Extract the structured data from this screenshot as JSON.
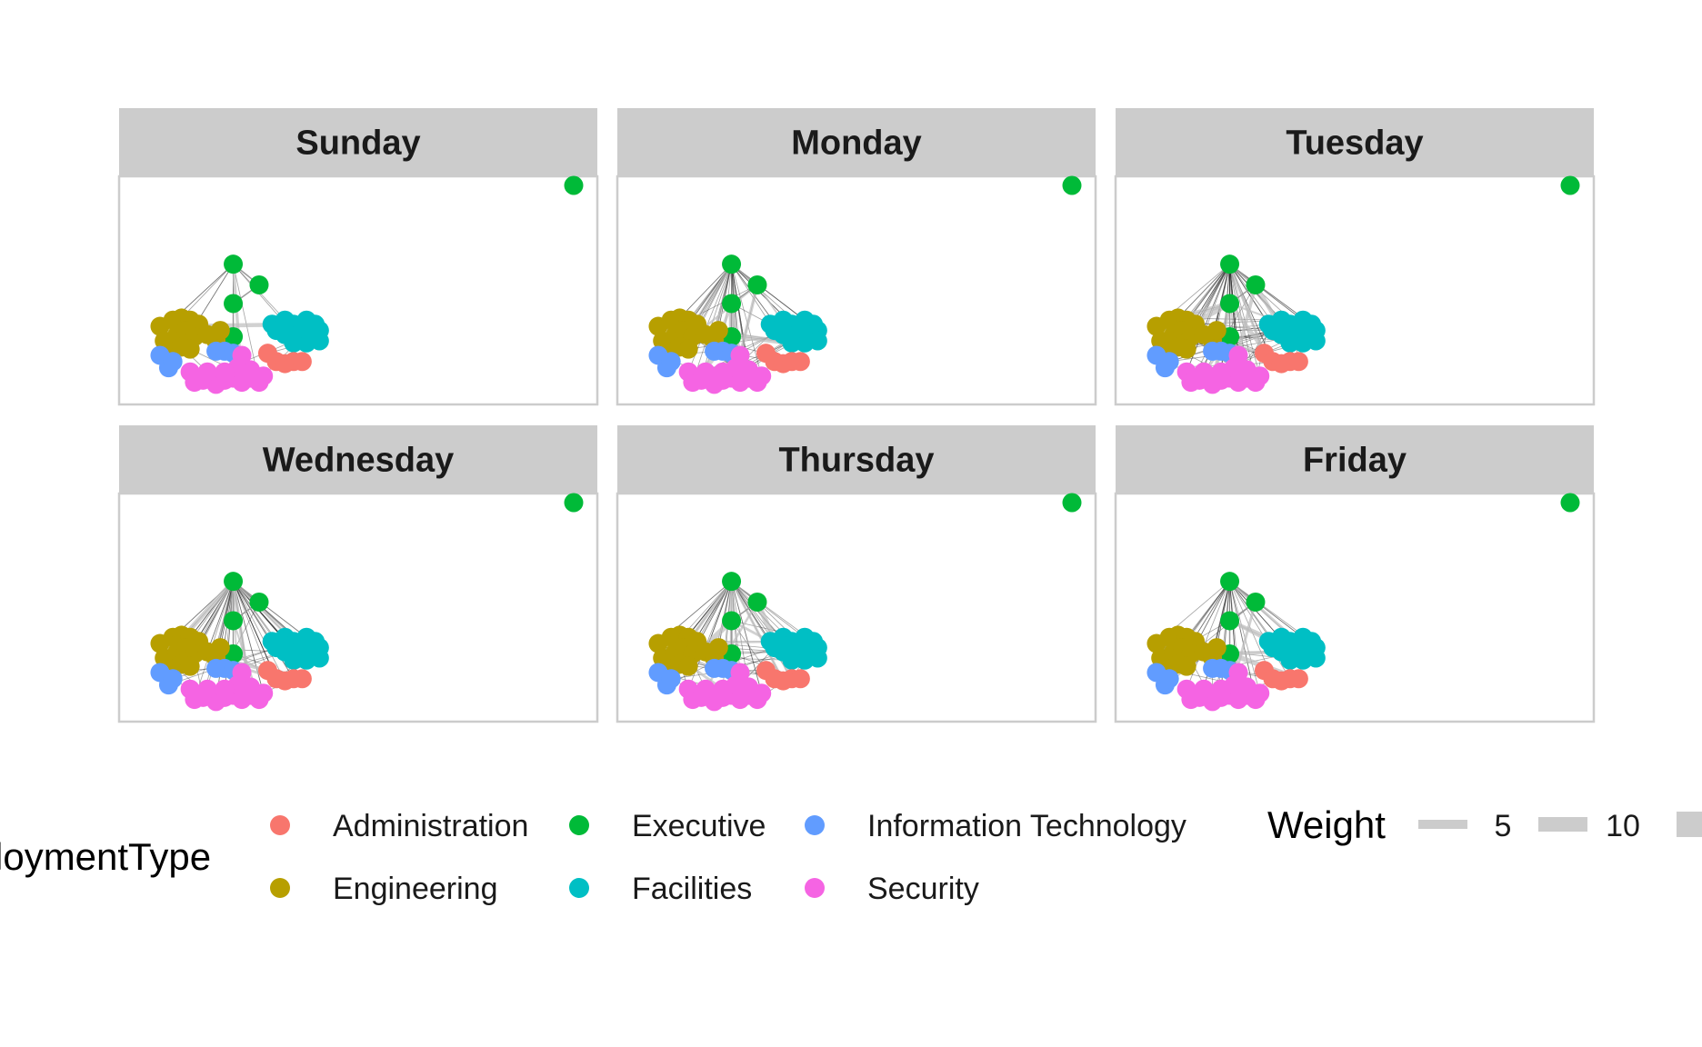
{
  "chart_data": {
    "type": "network",
    "facet_labels": [
      "Sunday",
      "Monday",
      "Tuesday",
      "Wednesday",
      "Thursday",
      "Friday"
    ],
    "legend": {
      "color_title": "EmploymentType",
      "color_title_visible": "loymentType",
      "color_entries": [
        {
          "label": "Administration",
          "color": "#F8766D"
        },
        {
          "label": "Executive",
          "color": "#00BA38"
        },
        {
          "label": "Information Technology",
          "color": "#619CFF"
        },
        {
          "label": "Engineering",
          "color": "#B79F00"
        },
        {
          "label": "Facilities",
          "color": "#00BFC4"
        },
        {
          "label": "Security",
          "color": "#F564E3"
        }
      ],
      "weight_title": "Weight",
      "weight_entries": [
        {
          "label": "5",
          "value": 5
        },
        {
          "label": "10",
          "value": 10
        }
      ]
    },
    "edge_density": {
      "Sunday": 0.15,
      "Monday": 0.7,
      "Tuesday": 1.0,
      "Wednesday": 0.85,
      "Thursday": 0.75,
      "Friday": 0.6
    },
    "nodes": [
      {
        "type": "Executive",
        "x": 1.0,
        "y": 1.0
      },
      {
        "type": "Executive",
        "x": 0.21,
        "y": 0.62
      },
      {
        "type": "Executive",
        "x": 0.27,
        "y": 0.52
      },
      {
        "type": "Executive",
        "x": 0.21,
        "y": 0.43
      },
      {
        "type": "Executive",
        "x": 0.21,
        "y": 0.27
      },
      {
        "type": "Engineering",
        "x": 0.04,
        "y": 0.32
      },
      {
        "type": "Engineering",
        "x": 0.07,
        "y": 0.35
      },
      {
        "type": "Engineering",
        "x": 0.09,
        "y": 0.36
      },
      {
        "type": "Engineering",
        "x": 0.11,
        "y": 0.35
      },
      {
        "type": "Engineering",
        "x": 0.13,
        "y": 0.33
      },
      {
        "type": "Engineering",
        "x": 0.05,
        "y": 0.25
      },
      {
        "type": "Engineering",
        "x": 0.08,
        "y": 0.28
      },
      {
        "type": "Engineering",
        "x": 0.1,
        "y": 0.3
      },
      {
        "type": "Engineering",
        "x": 0.12,
        "y": 0.27
      },
      {
        "type": "Engineering",
        "x": 0.15,
        "y": 0.28
      },
      {
        "type": "Engineering",
        "x": 0.17,
        "y": 0.25
      },
      {
        "type": "Engineering",
        "x": 0.18,
        "y": 0.3
      },
      {
        "type": "Engineering",
        "x": 0.06,
        "y": 0.2
      },
      {
        "type": "Engineering",
        "x": 0.09,
        "y": 0.22
      },
      {
        "type": "Engineering",
        "x": 0.11,
        "y": 0.21
      },
      {
        "type": "Facilities",
        "x": 0.3,
        "y": 0.33
      },
      {
        "type": "Facilities",
        "x": 0.33,
        "y": 0.35
      },
      {
        "type": "Facilities",
        "x": 0.35,
        "y": 0.33
      },
      {
        "type": "Facilities",
        "x": 0.38,
        "y": 0.35
      },
      {
        "type": "Facilities",
        "x": 0.4,
        "y": 0.33
      },
      {
        "type": "Facilities",
        "x": 0.41,
        "y": 0.3
      },
      {
        "type": "Facilities",
        "x": 0.39,
        "y": 0.28
      },
      {
        "type": "Facilities",
        "x": 0.36,
        "y": 0.27
      },
      {
        "type": "Facilities",
        "x": 0.33,
        "y": 0.28
      },
      {
        "type": "Facilities",
        "x": 0.31,
        "y": 0.3
      },
      {
        "type": "Facilities",
        "x": 0.35,
        "y": 0.24
      },
      {
        "type": "Facilities",
        "x": 0.38,
        "y": 0.24
      },
      {
        "type": "Facilities",
        "x": 0.41,
        "y": 0.25
      },
      {
        "type": "Facilities",
        "x": 0.34,
        "y": 0.31
      },
      {
        "type": "Facilities",
        "x": 0.37,
        "y": 0.31
      },
      {
        "type": "Administration",
        "x": 0.29,
        "y": 0.19
      },
      {
        "type": "Administration",
        "x": 0.31,
        "y": 0.15
      },
      {
        "type": "Administration",
        "x": 0.33,
        "y": 0.14
      },
      {
        "type": "Administration",
        "x": 0.35,
        "y": 0.15
      },
      {
        "type": "Administration",
        "x": 0.37,
        "y": 0.15
      },
      {
        "type": "Information Technology",
        "x": 0.04,
        "y": 0.18
      },
      {
        "type": "Information Technology",
        "x": 0.06,
        "y": 0.12
      },
      {
        "type": "Information Technology",
        "x": 0.07,
        "y": 0.15
      },
      {
        "type": "Information Technology",
        "x": 0.17,
        "y": 0.2
      },
      {
        "type": "Information Technology",
        "x": 0.19,
        "y": 0.2
      },
      {
        "type": "Information Technology",
        "x": 0.21,
        "y": 0.19
      },
      {
        "type": "Security",
        "x": 0.11,
        "y": 0.1
      },
      {
        "type": "Security",
        "x": 0.12,
        "y": 0.05
      },
      {
        "type": "Security",
        "x": 0.14,
        "y": 0.06
      },
      {
        "type": "Security",
        "x": 0.17,
        "y": 0.04
      },
      {
        "type": "Security",
        "x": 0.19,
        "y": 0.06
      },
      {
        "type": "Security",
        "x": 0.21,
        "y": 0.07
      },
      {
        "type": "Security",
        "x": 0.23,
        "y": 0.05
      },
      {
        "type": "Security",
        "x": 0.25,
        "y": 0.07
      },
      {
        "type": "Security",
        "x": 0.27,
        "y": 0.05
      },
      {
        "type": "Security",
        "x": 0.28,
        "y": 0.08
      },
      {
        "type": "Security",
        "x": 0.25,
        "y": 0.11
      },
      {
        "type": "Security",
        "x": 0.22,
        "y": 0.12
      },
      {
        "type": "Security",
        "x": 0.19,
        "y": 0.1
      },
      {
        "type": "Security",
        "x": 0.15,
        "y": 0.1
      },
      {
        "type": "Security",
        "x": 0.23,
        "y": 0.18
      }
    ]
  }
}
